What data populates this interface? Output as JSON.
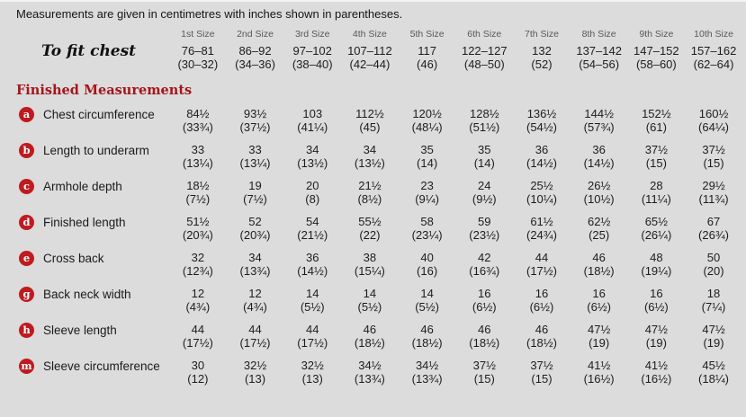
{
  "intro": "Measurements are given in centimetres with inches shown in parentheses.",
  "colors": {
    "background": "#dcdcdc",
    "badge_red": "#bf1a20",
    "heading_red": "#a4161c",
    "header_gray": "#585858",
    "text": "#1d1d1d"
  },
  "table": {
    "size_headers": [
      "1st Size",
      "2nd Size",
      "3rd Size",
      "4th Size",
      "5th Size",
      "6th Size",
      "7th Size",
      "8th Size",
      "9th Size",
      "10th Size"
    ],
    "to_fit_chest": {
      "label": "To fit chest",
      "cm": [
        "76–81",
        "86–92",
        "97–102",
        "107–112",
        "117",
        "122–127",
        "132",
        "137–142",
        "147–152",
        "157–162"
      ],
      "inches": [
        "(30–32)",
        "(34–36)",
        "(38–40)",
        "(42–44)",
        "(46)",
        "(48–50)",
        "(52)",
        "(54–56)",
        "(58–60)",
        "(62–64)"
      ]
    },
    "section_heading": "Finished Measurements",
    "rows": [
      {
        "key": "a",
        "label": "Chest circumference",
        "cm": [
          "84½",
          "93½",
          "103",
          "112½",
          "120½",
          "128½",
          "136½",
          "144½",
          "152½",
          "160½"
        ],
        "inches": [
          "(33¾)",
          "(37½)",
          "(41¼)",
          "(45)",
          "(48¼)",
          "(51½)",
          "(54½)",
          "(57¾)",
          "(61)",
          "(64¼)"
        ]
      },
      {
        "key": "b",
        "label": "Length to underarm",
        "cm": [
          "33",
          "33",
          "34",
          "34",
          "35",
          "35",
          "36",
          "36",
          "37½",
          "37½"
        ],
        "inches": [
          "(13¼)",
          "(13¼)",
          "(13½)",
          "(13½)",
          "(14)",
          "(14)",
          "(14½)",
          "(14½)",
          "(15)",
          "(15)"
        ]
      },
      {
        "key": "c",
        "label": "Armhole depth",
        "cm": [
          "18½",
          "19",
          "20",
          "21½",
          "23",
          "24",
          "25½",
          "26½",
          "28",
          "29½"
        ],
        "inches": [
          "(7½)",
          "(7½)",
          "(8)",
          "(8½)",
          "(9¼)",
          "(9½)",
          "(10¼)",
          "(10½)",
          "(11¼)",
          "(11¾)"
        ]
      },
      {
        "key": "d",
        "label": "Finished length",
        "cm": [
          "51½",
          "52",
          "54",
          "55½",
          "58",
          "59",
          "61½",
          "62½",
          "65½",
          "67"
        ],
        "inches": [
          "(20¾)",
          "(20¾)",
          "(21½)",
          "(22)",
          "(23¼)",
          "(23½)",
          "(24¾)",
          "(25)",
          "(26¼)",
          "(26¾)"
        ]
      },
      {
        "key": "e",
        "label": "Cross back",
        "cm": [
          "32",
          "34",
          "36",
          "38",
          "40",
          "42",
          "44",
          "46",
          "48",
          "50"
        ],
        "inches": [
          "(12¾)",
          "(13¾)",
          "(14½)",
          "(15¼)",
          "(16)",
          "(16¾)",
          "(17½)",
          "(18½)",
          "(19¼)",
          "(20)"
        ]
      },
      {
        "key": "g",
        "label": "Back neck width",
        "cm": [
          "12",
          "12",
          "14",
          "14",
          "14",
          "16",
          "16",
          "16",
          "16",
          "18"
        ],
        "inches": [
          "(4¾)",
          "(4¾)",
          "(5½)",
          "(5½)",
          "(5½)",
          "(6½)",
          "(6½)",
          "(6½)",
          "(6½)",
          "(7¼)"
        ]
      },
      {
        "key": "h",
        "label": "Sleeve length",
        "cm": [
          "44",
          "44",
          "44",
          "46",
          "46",
          "46",
          "46",
          "47½",
          "47½",
          "47½"
        ],
        "inches": [
          "(17½)",
          "(17½)",
          "(17½)",
          "(18½)",
          "(18½)",
          "(18½)",
          "(18½)",
          "(19)",
          "(19)",
          "(19)"
        ]
      },
      {
        "key": "m",
        "label": "Sleeve circumference",
        "cm": [
          "30",
          "32½",
          "32½",
          "34½",
          "34½",
          "37½",
          "37½",
          "41½",
          "41½",
          "45½"
        ],
        "inches": [
          "(12)",
          "(13)",
          "(13)",
          "(13¾)",
          "(13¾)",
          "(15)",
          "(15)",
          "(16½)",
          "(16½)",
          "(18¼)"
        ]
      }
    ]
  }
}
